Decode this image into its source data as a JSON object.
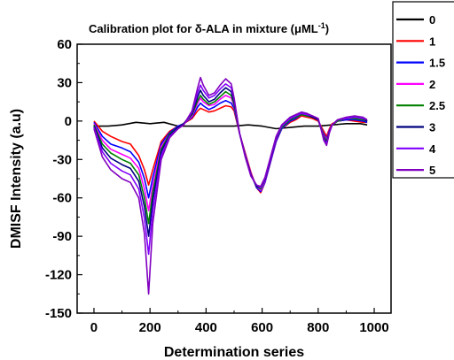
{
  "chart_data": {
    "type": "line",
    "title": "Calibration plot for δ-ALA in mixture (μML",
    "title_superscript": "-1",
    "title_suffix": ")",
    "xlabel": "Determination series",
    "ylabel": "DMISF Intensity (a.u)",
    "xlim": [
      -60,
      1060
    ],
    "ylim": [
      -150,
      60
    ],
    "xticks": [
      "0",
      "200",
      "400",
      "600",
      "800",
      "1000"
    ],
    "yticks": [
      "60",
      "30",
      "0",
      "-30",
      "-60",
      "-90",
      "-120",
      "-150"
    ],
    "legend_position": "top-right",
    "grid": false,
    "baseline": {
      "x": [
        0,
        50,
        100,
        150,
        200,
        250,
        300,
        350,
        400,
        450,
        500,
        550,
        600,
        650,
        700,
        750,
        800,
        850,
        900,
        950,
        975
      ],
      "y": [
        -4,
        -4,
        -3,
        -1,
        -2,
        -1,
        -4,
        -4,
        -4,
        -4,
        -4,
        -3,
        -4,
        -6,
        -5,
        -4,
        -4,
        -3,
        -2,
        -2,
        -3
      ]
    },
    "shape_x": [
      0,
      30,
      60,
      100,
      130,
      160,
      180,
      195,
      210,
      240,
      270,
      300,
      320,
      350,
      370,
      380,
      390,
      410,
      430,
      450,
      470,
      490,
      500,
      520,
      540,
      560,
      580,
      595,
      610,
      630,
      650,
      670,
      700,
      720,
      740,
      760,
      780,
      800,
      810,
      820,
      830,
      840,
      850,
      870,
      900,
      930,
      960,
      975
    ],
    "series": [
      {
        "name": "0",
        "color": "#000000",
        "values": null
      },
      {
        "name": "1",
        "color": "#ff0000",
        "values": [
          0,
          -8,
          -12,
          -16,
          -18,
          -27,
          -38,
          -50,
          -38,
          -16,
          -8,
          -4,
          -2,
          2,
          8,
          10,
          9,
          7,
          8,
          10,
          12,
          11,
          8,
          -10,
          -25,
          -40,
          -52,
          -56,
          -48,
          -32,
          -16,
          -6,
          -1,
          1,
          4,
          3,
          2,
          0,
          -4,
          -8,
          -12,
          -6,
          -2,
          0,
          1,
          0,
          -1,
          -1
        ]
      },
      {
        "name": "1.5",
        "color": "#0000ff",
        "values": [
          -1,
          -12,
          -18,
          -21,
          -24,
          -32,
          -45,
          -60,
          -44,
          -18,
          -9,
          -4,
          -2,
          3,
          11,
          14,
          12,
          9,
          11,
          14,
          16,
          14,
          10,
          -10,
          -26,
          -41,
          -52,
          -55,
          -48,
          -32,
          -16,
          -6,
          0,
          2,
          5,
          4,
          3,
          1,
          -5,
          -10,
          -14,
          -7,
          -3,
          0,
          1,
          1,
          0,
          -1
        ]
      },
      {
        "name": "2",
        "color": "#ff00ff",
        "values": [
          -2,
          -15,
          -22,
          -26,
          -29,
          -37,
          -53,
          -70,
          -50,
          -20,
          -10,
          -5,
          -2,
          4,
          14,
          18,
          15,
          12,
          13,
          17,
          20,
          18,
          12,
          -10,
          -26,
          -41,
          -51,
          -54,
          -47,
          -31,
          -15,
          -5,
          1,
          3,
          5,
          4,
          3,
          1,
          -5,
          -11,
          -15,
          -7,
          -3,
          0,
          2,
          2,
          1,
          0
        ]
      },
      {
        "name": "2.5",
        "color": "#008000",
        "values": [
          -3,
          -18,
          -25,
          -30,
          -33,
          -42,
          -60,
          -80,
          -56,
          -22,
          -10,
          -5,
          -2,
          5,
          16,
          20,
          17,
          13,
          15,
          19,
          23,
          20,
          13,
          -10,
          -27,
          -42,
          -51,
          -53,
          -46,
          -30,
          -14,
          -5,
          1,
          3,
          5,
          4,
          3,
          1,
          -5,
          -12,
          -16,
          -8,
          -3,
          0,
          2,
          2,
          1,
          0
        ]
      },
      {
        "name": "3",
        "color": "#000080",
        "values": [
          -4,
          -21,
          -29,
          -34,
          -37,
          -47,
          -67,
          -90,
          -62,
          -24,
          -11,
          -5,
          -2,
          6,
          19,
          24,
          20,
          15,
          17,
          22,
          26,
          23,
          15,
          -10,
          -27,
          -42,
          -51,
          -52,
          -46,
          -30,
          -14,
          -4,
          2,
          4,
          6,
          5,
          3,
          1,
          -6,
          -13,
          -17,
          -8,
          -3,
          1,
          2,
          3,
          2,
          0
        ]
      },
      {
        "name": "4",
        "color": "#8000ff",
        "values": [
          -5,
          -24,
          -33,
          -39,
          -42,
          -53,
          -76,
          -104,
          -70,
          -27,
          -12,
          -6,
          -3,
          7,
          22,
          28,
          24,
          18,
          20,
          25,
          29,
          26,
          17,
          -10,
          -28,
          -43,
          -50,
          -52,
          -45,
          -29,
          -13,
          -4,
          2,
          4,
          6,
          5,
          4,
          2,
          -6,
          -14,
          -18,
          -9,
          -3,
          1,
          2,
          3,
          2,
          1
        ]
      },
      {
        "name": "5",
        "color": "#8000c0",
        "values": [
          -6,
          -28,
          -38,
          -45,
          -48,
          -60,
          -88,
          -135,
          -80,
          -30,
          -13,
          -6,
          -3,
          8,
          26,
          34,
          28,
          20,
          22,
          28,
          33,
          29,
          18,
          -10,
          -28,
          -43,
          -50,
          -51,
          -44,
          -28,
          -12,
          -3,
          3,
          5,
          7,
          6,
          4,
          2,
          -6,
          -15,
          -19,
          -9,
          -3,
          1,
          3,
          4,
          3,
          1
        ]
      }
    ]
  }
}
